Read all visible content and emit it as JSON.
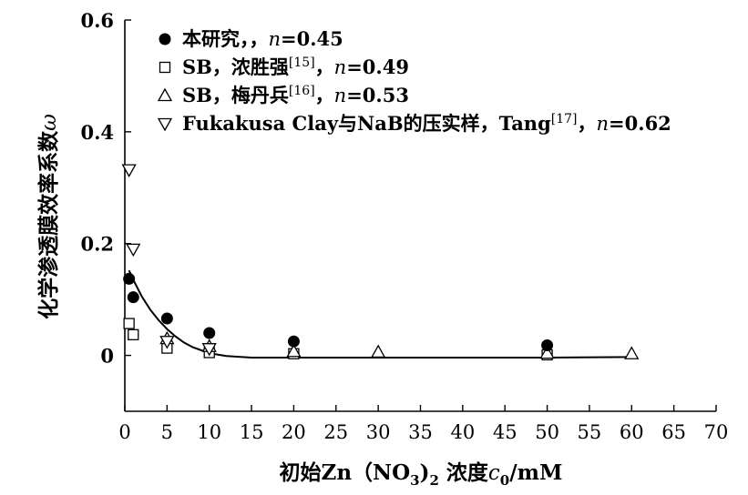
{
  "chart_data": {
    "type": "scatter",
    "xlabel": "初始Zn（NO3)2 浓度c0/mM",
    "xlabel_parts": {
      "pre": "初始Zn（NO",
      "sub1": "3",
      "mid": ")",
      "sub2": "2",
      "mid2": " 浓度",
      "var": "c",
      "sub3": "0",
      "post": "/mM"
    },
    "ylabel": "化学渗透膜效率系数ω",
    "ylabel_parts": {
      "text": "化学渗透膜效率系数",
      "var": "ω"
    },
    "xlim": [
      0,
      70
    ],
    "ylim": [
      -0.1,
      0.6
    ],
    "x_ticks": [
      0,
      5,
      10,
      15,
      20,
      25,
      30,
      35,
      40,
      45,
      50,
      55,
      60,
      65,
      70
    ],
    "y_ticks": [
      {
        "value": 0.6,
        "label": "0.6"
      },
      {
        "value": 0.4,
        "label": "0.4"
      },
      {
        "value": 0.2,
        "label": "0.2"
      },
      {
        "value": 0,
        "label": "0"
      }
    ],
    "legend_position": "top-left",
    "series": [
      {
        "marker": "filled-circle",
        "legend": {
          "pre": "本研究，",
          "ref": "",
          "post": "，",
          "n_label": "n",
          "n_value": "=0.45"
        },
        "points": [
          {
            "x": 0.5,
            "y": 0.137
          },
          {
            "x": 1,
            "y": 0.104
          },
          {
            "x": 5,
            "y": 0.066
          },
          {
            "x": 10,
            "y": 0.04
          },
          {
            "x": 20,
            "y": 0.025
          },
          {
            "x": 50,
            "y": 0.018
          }
        ]
      },
      {
        "marker": "open-square",
        "legend": {
          "pre": "SB，浓胜强",
          "ref": "[15]",
          "post": "，",
          "n_label": "n",
          "n_value": "=0.49"
        },
        "points": [
          {
            "x": 0.5,
            "y": 0.057
          },
          {
            "x": 1,
            "y": 0.037
          },
          {
            "x": 5,
            "y": 0.013
          },
          {
            "x": 10,
            "y": 0.005
          },
          {
            "x": 20,
            "y": 0.003
          },
          {
            "x": 50,
            "y": 0.001
          }
        ]
      },
      {
        "marker": "open-triangle-up",
        "legend": {
          "pre": "SB，梅丹兵",
          "ref": "[16]",
          "post": "，",
          "n_label": "n",
          "n_value": "=0.53"
        },
        "points": [
          {
            "x": 5,
            "y": 0.03
          },
          {
            "x": 10,
            "y": 0.016
          },
          {
            "x": 20,
            "y": 0.007
          },
          {
            "x": 30,
            "y": 0.006
          },
          {
            "x": 50,
            "y": 0.004
          },
          {
            "x": 60,
            "y": 0.003
          }
        ]
      },
      {
        "marker": "open-triangle-down",
        "legend": {
          "pre": "Fukakusa Clay与NaB的压实样，Tang",
          "ref": "[17]",
          "post": "，",
          "n_label": "n",
          "n_value": "=0.62"
        },
        "points": [
          {
            "x": 0.5,
            "y": 0.332
          },
          {
            "x": 1,
            "y": 0.19
          },
          {
            "x": 5,
            "y": 0.025
          },
          {
            "x": 10,
            "y": 0.012
          }
        ]
      }
    ],
    "fit_curve": {
      "points": [
        {
          "x": 0.5,
          "y": 0.152
        },
        {
          "x": 1,
          "y": 0.135
        },
        {
          "x": 2,
          "y": 0.106
        },
        {
          "x": 3,
          "y": 0.082
        },
        {
          "x": 4,
          "y": 0.063
        },
        {
          "x": 5,
          "y": 0.047
        },
        {
          "x": 6,
          "y": 0.034
        },
        {
          "x": 7,
          "y": 0.023
        },
        {
          "x": 8,
          "y": 0.015
        },
        {
          "x": 10,
          "y": 0.004
        },
        {
          "x": 12,
          "y": -0.001
        },
        {
          "x": 15,
          "y": -0.004
        },
        {
          "x": 20,
          "y": -0.004
        },
        {
          "x": 30,
          "y": -0.004
        },
        {
          "x": 40,
          "y": -0.004
        },
        {
          "x": 50,
          "y": -0.004
        },
        {
          "x": 60,
          "y": -0.003
        }
      ]
    }
  }
}
